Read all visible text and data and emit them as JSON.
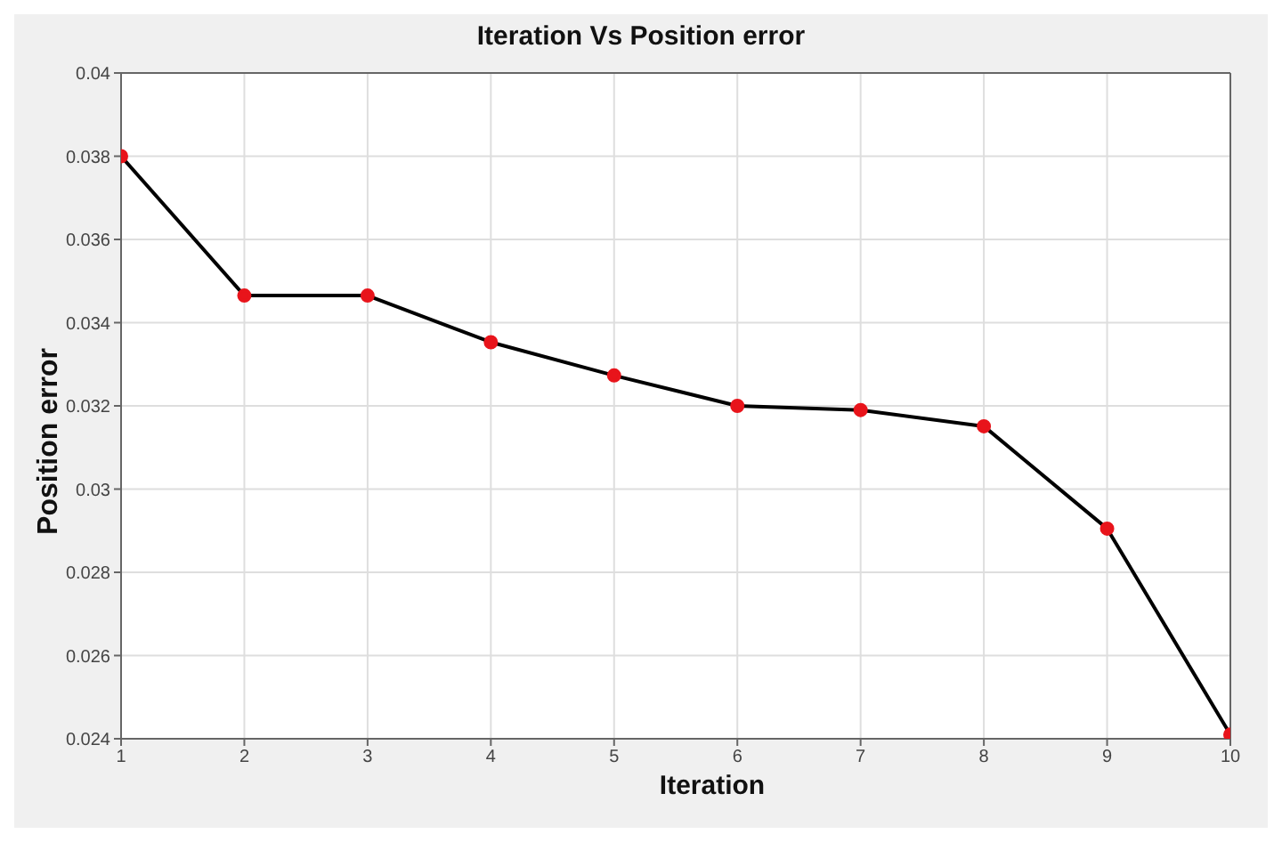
{
  "chart_data": {
    "type": "line",
    "title": "Iteration Vs Position error",
    "xlabel": "Iteration",
    "ylabel": "Position error",
    "x": [
      1,
      2,
      3,
      4,
      5,
      6,
      7,
      8,
      9,
      10
    ],
    "series": [
      {
        "color": "#000000",
        "values": [
          0.038,
          0.03465,
          0.03465,
          0.03353,
          0.03273,
          0.032,
          0.0319,
          0.03151,
          0.02905,
          0.0241
        ]
      }
    ],
    "xlim": [
      1,
      10
    ],
    "xticks": [
      1,
      2,
      3,
      4,
      5,
      6,
      7,
      8,
      9,
      10
    ],
    "ylim": [
      0.024,
      0.04
    ],
    "yticks": [
      0.024,
      0.026,
      0.028,
      0.03,
      0.032,
      0.034,
      0.036,
      0.038,
      0.04
    ],
    "grid": true,
    "marker": "circle",
    "line_style": "solid",
    "legend": false
  }
}
